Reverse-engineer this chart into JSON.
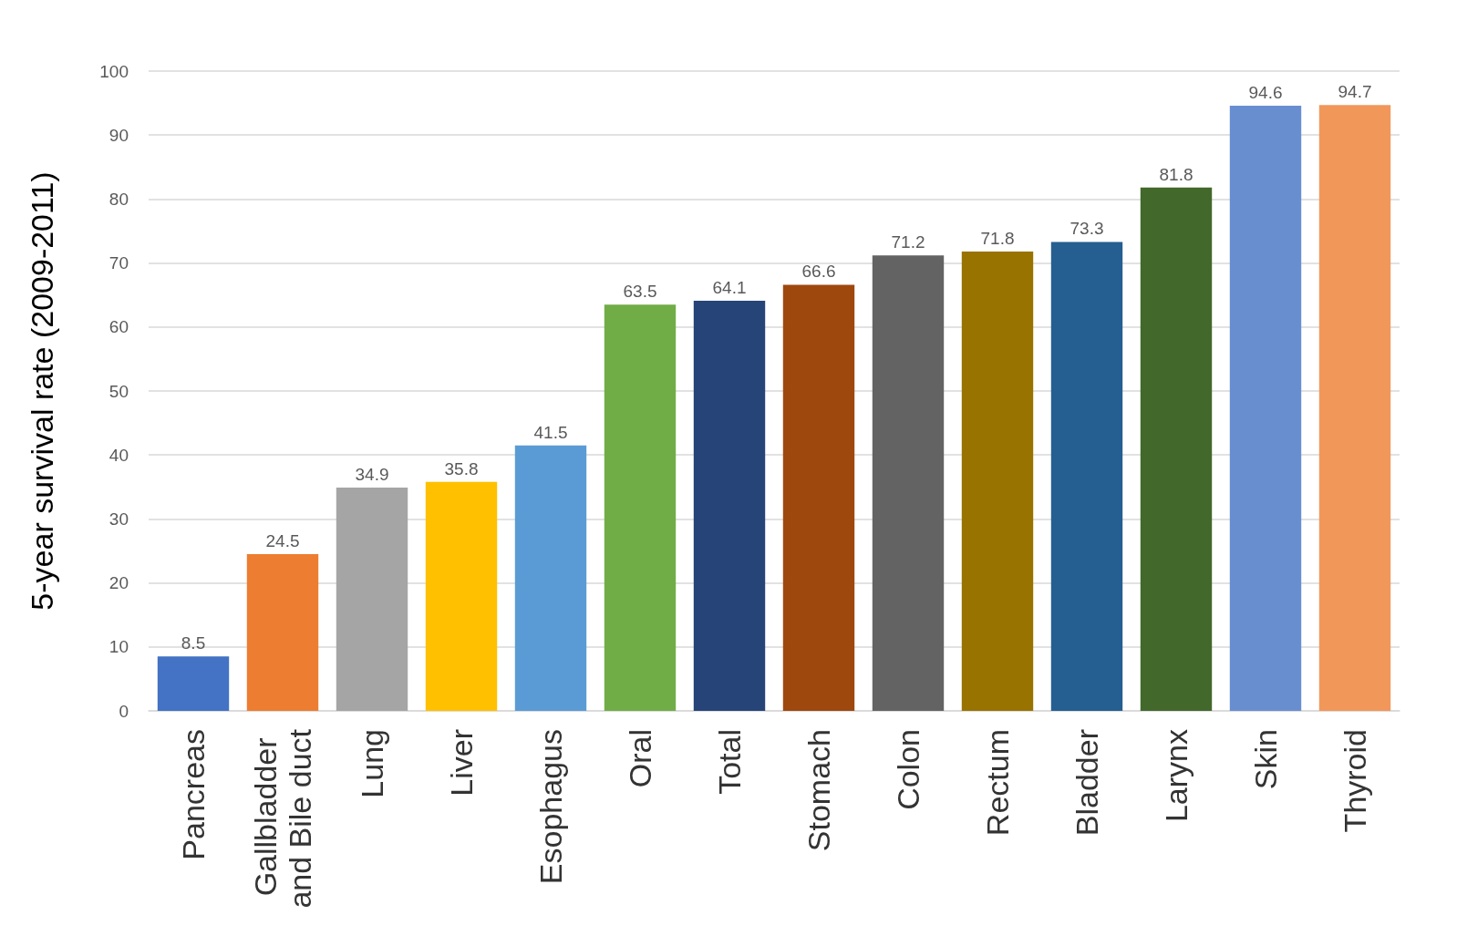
{
  "chart_data": {
    "type": "bar",
    "ylabel": "5-year survival rate (2009-2011)",
    "categories": [
      "Pancreas",
      "Gallbladder and Bile duct",
      "Lung",
      "Liver",
      "Esophagus",
      "Oral",
      "Total",
      "Stomach",
      "Colon",
      "Rectum",
      "Bladder",
      "Larynx",
      "Skin",
      "Thyroid"
    ],
    "values": [
      8.5,
      24.5,
      34.9,
      35.8,
      41.5,
      63.5,
      64.1,
      66.6,
      71.2,
      71.8,
      73.3,
      81.8,
      94.6,
      94.7
    ],
    "colors": [
      "#4472c4",
      "#ed7d31",
      "#a5a5a5",
      "#ffc000",
      "#5b9bd5",
      "#70ad47",
      "#264478",
      "#9e480e",
      "#636363",
      "#997300",
      "#255e91",
      "#43682b",
      "#698ed0",
      "#f1975a"
    ],
    "ylim": [
      0,
      100
    ],
    "yticks": [
      0,
      10,
      20,
      30,
      40,
      50,
      60,
      70,
      80,
      90,
      100
    ],
    "grid": "y",
    "data_labels": true
  }
}
